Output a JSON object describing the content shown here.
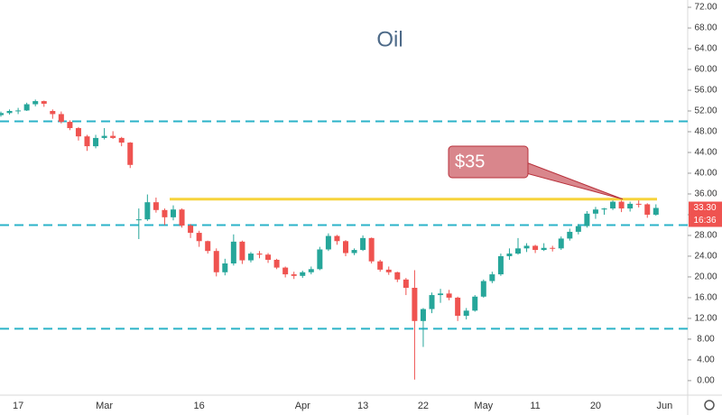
{
  "chart_data": {
    "type": "candlestick",
    "title": "Oil",
    "categories": [
      null,
      null,
      "17",
      null,
      null,
      null,
      null,
      null,
      null,
      null,
      null,
      null,
      "Mar",
      null,
      null,
      null,
      null,
      null,
      null,
      null,
      null,
      null,
      null,
      "16",
      null,
      null,
      null,
      null,
      null,
      null,
      null,
      null,
      null,
      null,
      null,
      "Apr",
      null,
      null,
      null,
      null,
      null,
      null,
      "13",
      null,
      null,
      null,
      null,
      null,
      null,
      "22",
      null,
      null,
      null,
      null,
      null,
      null,
      "May",
      null,
      null,
      null,
      null,
      null,
      "11",
      null,
      null,
      null,
      null,
      null,
      null,
      "20",
      null,
      null,
      null,
      null,
      null,
      null,
      null,
      "Jun"
    ],
    "open": [
      51.2,
      51.6,
      52.0,
      52.1,
      53.3,
      53.9,
      52.0,
      51.4,
      49.9,
      48.7,
      47.1,
      45.2,
      46.8,
      47.2,
      46.8,
      45.9,
      31.1,
      31.1,
      34.4,
      32.9,
      31.5,
      33.0,
      29.9,
      28.5,
      26.9,
      25.0,
      20.9,
      22.6,
      26.8,
      23.2,
      24.5,
      24.3,
      23.3,
      21.8,
      20.5,
      20.2,
      20.9,
      21.5,
      25.3,
      27.9,
      26.9,
      24.6,
      25.2,
      27.5,
      23.0,
      21.4,
      20.9,
      19.5,
      17.9,
      11.5,
      13.8,
      16.5,
      16.8,
      16.0,
      12.5,
      13.5,
      16.2,
      19.2,
      20.5,
      24.0,
      24.5,
      25.5,
      26.0,
      25.2,
      25.6,
      25.5,
      27.4,
      28.7,
      29.8,
      32.2,
      33.0,
      33.2,
      34.5,
      33.2,
      34.1,
      34.0,
      32.0,
      null
    ],
    "high": [
      51.9,
      52.3,
      52.6,
      53.6,
      54.2,
      54.0,
      52.3,
      51.9,
      50.2,
      48.9,
      47.4,
      47.4,
      48.7,
      48.1,
      47.0,
      46.0,
      33.2,
      35.9,
      35.3,
      33.2,
      33.8,
      33.2,
      30.2,
      28.9,
      27.0,
      25.5,
      23.5,
      28.2,
      27.0,
      24.8,
      25.0,
      24.6,
      23.5,
      22.0,
      21.0,
      21.2,
      22.0,
      25.8,
      28.4,
      28.1,
      27.1,
      25.5,
      28.0,
      27.6,
      23.3,
      22.0,
      21.0,
      19.8,
      21.3,
      14.0,
      17.0,
      17.7,
      17.5,
      16.2,
      14.0,
      16.5,
      19.5,
      21.0,
      24.5,
      25.5,
      27.5,
      26.5,
      26.2,
      26.5,
      26.0,
      27.8,
      29.3,
      30.2,
      32.7,
      33.5,
      33.3,
      35.1,
      35.2,
      34.5,
      35.0,
      34.2,
      34.0,
      null
    ],
    "low": [
      50.9,
      51.3,
      51.4,
      52.0,
      52.9,
      52.8,
      50.5,
      49.6,
      48.3,
      46.3,
      44.3,
      44.8,
      46.5,
      46.6,
      45.2,
      41.0,
      27.3,
      30.8,
      32.4,
      30.0,
      30.9,
      29.5,
      27.5,
      25.8,
      24.5,
      20.1,
      20.3,
      22.2,
      22.5,
      22.8,
      23.6,
      22.7,
      21.5,
      19.9,
      19.6,
      19.8,
      20.5,
      21.3,
      25.0,
      26.2,
      24.0,
      24.2,
      25.0,
      22.6,
      21.0,
      20.4,
      19.0,
      16.5,
      0.2,
      6.5,
      13.0,
      15.0,
      15.5,
      11.5,
      11.8,
      13.3,
      16.0,
      18.8,
      20.2,
      23.3,
      24.3,
      24.8,
      24.6,
      25.0,
      24.9,
      25.2,
      27.0,
      28.2,
      29.5,
      31.2,
      32.0,
      32.9,
      32.5,
      32.6,
      33.4,
      31.4,
      31.8,
      null
    ],
    "close": [
      51.6,
      52.0,
      52.1,
      53.3,
      53.9,
      53.4,
      51.4,
      49.9,
      48.7,
      47.1,
      45.2,
      46.8,
      47.2,
      46.8,
      45.9,
      41.6,
      31.1,
      34.4,
      32.9,
      31.5,
      33.0,
      29.9,
      28.5,
      26.9,
      25.0,
      20.9,
      22.6,
      26.8,
      23.2,
      24.5,
      24.3,
      23.3,
      21.8,
      20.5,
      20.2,
      20.9,
      21.5,
      25.3,
      27.9,
      26.9,
      24.6,
      25.2,
      27.5,
      23.0,
      21.4,
      20.9,
      19.5,
      17.9,
      11.5,
      13.8,
      16.5,
      16.8,
      16.0,
      12.5,
      13.5,
      16.2,
      19.2,
      20.5,
      24.0,
      24.5,
      25.5,
      26.0,
      25.2,
      25.6,
      25.5,
      27.4,
      28.7,
      29.8,
      32.2,
      33.0,
      33.2,
      34.5,
      33.2,
      34.1,
      34.0,
      32.0,
      33.3,
      null
    ],
    "up_color": "#26a69a",
    "down_color": "#ef5350",
    "ylim": [
      -2.8,
      73.4
    ],
    "yticks": [
      {
        "value": 0,
        "label": "0.00"
      },
      {
        "value": 4,
        "label": "4.00"
      },
      {
        "value": 8,
        "label": "8.00"
      },
      {
        "value": 12,
        "label": "12.00"
      },
      {
        "value": 16,
        "label": "16.00"
      },
      {
        "value": 20,
        "label": "20.00"
      },
      {
        "value": 24,
        "label": "24.00"
      },
      {
        "value": 28,
        "label": "28.00"
      },
      {
        "value": 32,
        "label": "32.00"
      },
      {
        "value": 36,
        "label": "36.00"
      },
      {
        "value": 40,
        "label": "40.00"
      },
      {
        "value": 44,
        "label": "44.00"
      },
      {
        "value": 48,
        "label": "48.00"
      },
      {
        "value": 52,
        "label": "52.00"
      },
      {
        "value": 56,
        "label": "56.00"
      },
      {
        "value": 60,
        "label": "60.00"
      },
      {
        "value": 64,
        "label": "64.00"
      },
      {
        "value": 68,
        "label": "68.00"
      },
      {
        "value": 72,
        "label": "72.00"
      }
    ],
    "levels": [
      50,
      30,
      10
    ],
    "level_color": "#2bb3c8",
    "trendline": {
      "value": 35,
      "color": "#f7d33c"
    },
    "callout": "$35",
    "last_price": {
      "value": 33.3,
      "label": "33.30"
    },
    "countdown": "16:36"
  }
}
